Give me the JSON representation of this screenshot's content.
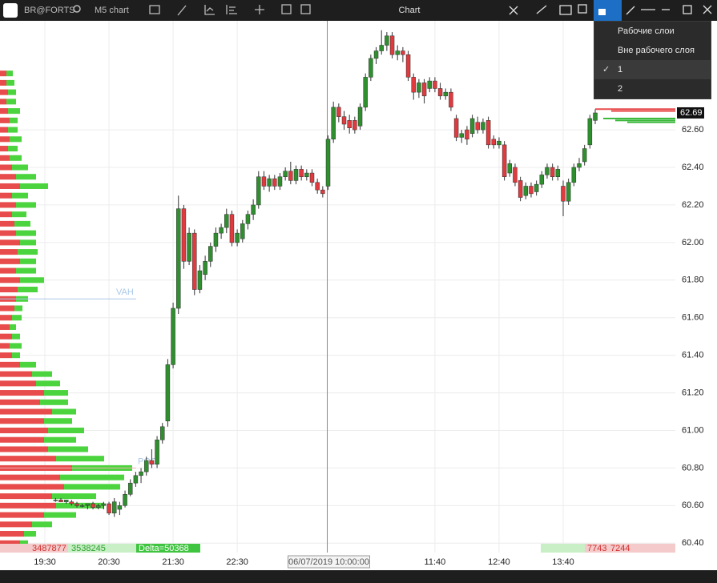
{
  "toolbar": {
    "symbol": "BR@FORTS",
    "timeframe": "M5 chart",
    "title": "Chart"
  },
  "menu": {
    "items": [
      {
        "label": "Рабочие слои"
      },
      {
        "label": "Вне рабочего слоя"
      },
      {
        "label": "1",
        "checked": true
      },
      {
        "label": "2",
        "checked": false
      }
    ]
  },
  "chart_data": {
    "type": "candlestick",
    "up_color": "#2f8f2f",
    "down_color": "#e0393e",
    "ylim": [
      60.35,
      63.18
    ],
    "yticks": [
      {
        "value": 60.4,
        "label": "60.40"
      },
      {
        "value": 60.6,
        "label": "60.60"
      },
      {
        "value": 60.8,
        "label": "60.80"
      },
      {
        "value": 61.0,
        "label": "61.00"
      },
      {
        "value": 61.2,
        "label": "61.20"
      },
      {
        "value": 61.4,
        "label": "61.40"
      },
      {
        "value": 61.6,
        "label": "61.60"
      },
      {
        "value": 61.8,
        "label": "61.80"
      },
      {
        "value": 62.0,
        "label": "62.00"
      },
      {
        "value": 62.2,
        "label": "62.20"
      },
      {
        "value": 62.4,
        "label": "62.40"
      },
      {
        "value": 62.6,
        "label": "62.60"
      }
    ],
    "grid": true,
    "categories": [
      "19:30",
      null,
      null,
      null,
      null,
      null,
      null,
      null,
      null,
      null,
      null,
      null,
      "20:30",
      null,
      null,
      null,
      null,
      null,
      null,
      null,
      null,
      null,
      null,
      null,
      "21:30",
      null,
      null,
      null,
      null,
      null,
      null,
      null,
      null,
      null,
      null,
      null,
      "22:30",
      null,
      null,
      null,
      null,
      null,
      null,
      null,
      null,
      null,
      null,
      null,
      null,
      null,
      null,
      null,
      null,
      "06/07/2019 10:00:00",
      null,
      null,
      null,
      null,
      null,
      null,
      null,
      null,
      null,
      null,
      null,
      null,
      null,
      null,
      null,
      null,
      null,
      null,
      null,
      "11:40",
      null,
      null,
      null,
      null,
      null,
      null,
      null,
      null,
      null,
      null,
      null,
      "12:40",
      null,
      null,
      null,
      null,
      null,
      null,
      null,
      null,
      null,
      null,
      null,
      "13:40",
      null,
      null,
      null,
      null,
      null,
      null
    ],
    "crosshair_index": 53,
    "ohlc": [
      null,
      null,
      [
        60.63,
        60.64,
        60.62,
        60.63
      ],
      [
        60.63,
        60.64,
        60.62,
        60.62
      ],
      [
        60.62,
        60.63,
        60.61,
        60.63
      ],
      [
        60.62,
        60.63,
        60.6,
        60.61
      ],
      [
        60.61,
        60.62,
        60.59,
        60.6
      ],
      [
        60.6,
        60.61,
        60.59,
        60.6
      ],
      [
        60.6,
        60.61,
        60.58,
        60.61
      ],
      [
        60.61,
        60.62,
        60.58,
        60.59
      ],
      [
        60.59,
        60.61,
        60.58,
        60.6
      ],
      [
        60.6,
        60.62,
        60.58,
        60.61
      ],
      [
        60.61,
        60.62,
        60.55,
        60.56
      ],
      [
        60.56,
        60.64,
        60.54,
        60.62
      ],
      [
        60.58,
        60.62,
        60.55,
        60.6
      ],
      [
        60.6,
        60.68,
        60.59,
        60.66
      ],
      [
        60.66,
        60.74,
        60.65,
        60.72
      ],
      [
        60.72,
        60.78,
        60.7,
        60.76
      ],
      [
        60.76,
        60.8,
        60.72,
        60.78
      ],
      [
        60.78,
        60.86,
        60.76,
        60.84
      ],
      [
        60.84,
        60.9,
        60.8,
        60.82
      ],
      [
        60.82,
        60.97,
        60.8,
        60.95
      ],
      [
        60.95,
        61.04,
        60.93,
        61.02
      ],
      [
        61.05,
        61.38,
        61.02,
        61.35
      ],
      [
        61.35,
        61.68,
        61.33,
        61.65
      ],
      [
        61.65,
        62.25,
        61.62,
        62.18
      ],
      [
        62.18,
        62.2,
        61.86,
        61.9
      ],
      [
        61.9,
        62.08,
        61.88,
        62.05
      ],
      [
        62.05,
        62.07,
        61.72,
        61.75
      ],
      [
        61.75,
        61.88,
        61.73,
        61.85
      ],
      [
        61.83,
        61.93,
        61.8,
        61.9
      ],
      [
        61.9,
        62.0,
        61.87,
        61.98
      ],
      [
        61.98,
        62.08,
        61.95,
        62.05
      ],
      [
        62.05,
        62.1,
        62.02,
        62.08
      ],
      [
        62.08,
        62.18,
        62.05,
        62.15
      ],
      [
        62.15,
        62.17,
        61.98,
        62.0
      ],
      [
        62.0,
        62.07,
        61.98,
        62.05
      ],
      [
        62.02,
        62.12,
        62.0,
        62.1
      ],
      [
        62.1,
        62.17,
        62.07,
        62.15
      ],
      [
        62.15,
        62.23,
        62.12,
        62.2
      ],
      [
        62.2,
        62.38,
        62.18,
        62.35
      ],
      [
        62.35,
        62.38,
        62.28,
        62.3
      ],
      [
        62.3,
        62.36,
        62.27,
        62.34
      ],
      [
        62.34,
        62.36,
        62.28,
        62.3
      ],
      [
        62.3,
        62.37,
        62.28,
        62.35
      ],
      [
        62.35,
        62.4,
        62.33,
        62.38
      ],
      [
        62.38,
        62.43,
        62.31,
        62.33
      ],
      [
        62.33,
        62.41,
        62.31,
        62.39
      ],
      [
        62.39,
        62.41,
        62.33,
        62.35
      ],
      [
        62.35,
        62.39,
        62.33,
        62.37
      ],
      [
        62.37,
        62.39,
        62.3,
        62.32
      ],
      [
        62.32,
        62.34,
        62.26,
        62.28
      ],
      [
        62.28,
        62.3,
        62.24,
        62.26
      ],
      [
        62.3,
        62.57,
        62.28,
        62.55
      ],
      [
        62.55,
        62.75,
        62.53,
        62.72
      ],
      [
        62.72,
        62.74,
        62.64,
        62.67
      ],
      [
        62.67,
        62.7,
        62.6,
        62.63
      ],
      [
        62.65,
        62.68,
        62.58,
        62.61
      ],
      [
        62.65,
        62.67,
        62.58,
        62.6
      ],
      [
        62.62,
        62.74,
        62.6,
        62.72
      ],
      [
        62.72,
        62.9,
        62.7,
        62.88
      ],
      [
        62.88,
        63.0,
        62.86,
        62.98
      ],
      [
        62.98,
        63.04,
        62.95,
        63.02
      ],
      [
        63.02,
        63.13,
        63.0,
        63.05
      ],
      [
        63.05,
        63.12,
        63.02,
        63.1
      ],
      [
        63.1,
        63.12,
        62.98,
        63.0
      ],
      [
        63.0,
        63.05,
        62.97,
        63.02
      ],
      [
        63.02,
        63.04,
        62.96,
        63.0
      ],
      [
        63.0,
        63.02,
        62.86,
        62.88
      ],
      [
        62.88,
        62.9,
        62.76,
        62.8
      ],
      [
        62.8,
        62.87,
        62.77,
        62.85
      ],
      [
        62.85,
        62.87,
        62.74,
        62.78
      ],
      [
        62.82,
        62.88,
        62.8,
        62.86
      ],
      [
        62.86,
        62.88,
        62.8,
        62.82
      ],
      [
        62.82,
        62.85,
        62.76,
        62.78
      ],
      [
        62.78,
        62.82,
        62.76,
        62.8
      ],
      [
        62.8,
        62.82,
        62.7,
        62.72
      ],
      [
        62.66,
        62.68,
        62.54,
        62.56
      ],
      [
        62.56,
        62.6,
        62.53,
        62.58
      ],
      [
        62.6,
        62.62,
        62.52,
        62.55
      ],
      [
        62.58,
        62.68,
        62.56,
        62.66
      ],
      [
        62.64,
        62.67,
        62.58,
        62.6
      ],
      [
        62.6,
        62.66,
        62.58,
        62.64
      ],
      [
        62.65,
        62.67,
        62.5,
        62.52
      ],
      [
        62.55,
        62.57,
        62.5,
        62.52
      ],
      [
        62.52,
        62.56,
        62.5,
        62.54
      ],
      [
        62.52,
        62.54,
        62.33,
        62.35
      ],
      [
        62.37,
        62.44,
        62.35,
        62.42
      ],
      [
        62.4,
        62.42,
        62.3,
        62.32
      ],
      [
        62.33,
        62.35,
        62.22,
        62.24
      ],
      [
        62.25,
        62.32,
        62.23,
        62.3
      ],
      [
        62.3,
        62.32,
        62.24,
        62.26
      ],
      [
        62.27,
        62.33,
        62.25,
        62.31
      ],
      [
        62.31,
        62.38,
        62.29,
        62.36
      ],
      [
        62.36,
        62.42,
        62.34,
        62.4
      ],
      [
        62.4,
        62.42,
        62.33,
        62.35
      ],
      [
        62.35,
        62.41,
        62.33,
        62.39
      ],
      [
        62.3,
        62.33,
        62.14,
        62.22
      ],
      [
        62.22,
        62.34,
        62.2,
        62.32
      ],
      [
        62.32,
        62.42,
        62.3,
        62.4
      ],
      [
        62.4,
        62.45,
        62.38,
        62.42
      ],
      [
        62.43,
        62.52,
        62.41,
        62.5
      ],
      [
        62.52,
        62.68,
        62.5,
        62.66
      ],
      [
        62.65,
        62.71,
        62.63,
        62.69
      ]
    ],
    "last_price": 62.69,
    "vah_label": "VAH",
    "vah": 61.7,
    "poc_label": "POC",
    "poc": 60.8,
    "profile": {
      "step": 0.05,
      "prices": [
        60.4,
        60.45,
        60.5,
        60.55,
        60.6,
        60.65,
        60.7,
        60.75,
        60.8,
        60.85,
        60.9,
        60.95,
        61.0,
        61.05,
        61.1,
        61.15,
        61.2,
        61.25,
        61.3,
        61.35,
        61.4,
        61.45,
        61.5,
        61.55,
        61.6,
        61.65,
        61.7,
        61.75,
        61.8,
        61.85,
        61.9,
        61.95,
        62.0,
        62.05,
        62.1,
        62.15,
        62.2,
        62.25,
        62.3,
        62.35,
        62.4,
        62.45,
        62.5,
        62.55,
        62.6,
        62.65,
        62.7,
        62.75,
        62.8,
        62.85,
        62.9
      ],
      "sell": [
        25,
        30,
        40,
        55,
        70,
        65,
        80,
        75,
        90,
        70,
        60,
        55,
        60,
        55,
        65,
        50,
        55,
        45,
        40,
        25,
        15,
        12,
        15,
        12,
        15,
        18,
        20,
        22,
        25,
        20,
        25,
        22,
        25,
        20,
        18,
        15,
        20,
        15,
        25,
        20,
        15,
        12,
        10,
        12,
        10,
        12,
        10,
        8,
        10,
        8,
        8
      ],
      "buy": [
        10,
        15,
        25,
        40,
        60,
        55,
        70,
        80,
        75,
        60,
        50,
        40,
        45,
        35,
        30,
        35,
        30,
        30,
        25,
        20,
        10,
        15,
        10,
        8,
        12,
        10,
        15,
        25,
        30,
        25,
        20,
        25,
        20,
        25,
        20,
        18,
        25,
        20,
        35,
        25,
        20,
        15,
        12,
        15,
        12,
        10,
        15,
        12,
        10,
        10,
        8
      ]
    },
    "depth": {
      "prices": [
        62.71,
        62.7,
        62.66,
        62.65,
        62.64
      ],
      "sizes": [
        100,
        80,
        90,
        75,
        60
      ],
      "sides": [
        "ask",
        "ask",
        "bid",
        "bid",
        "bid"
      ]
    },
    "stats": {
      "sell_volume": 3487877,
      "buy_volume": 3538245,
      "delta": "Delta=50368",
      "right_sell": 7743,
      "right_buy": 7244
    }
  }
}
